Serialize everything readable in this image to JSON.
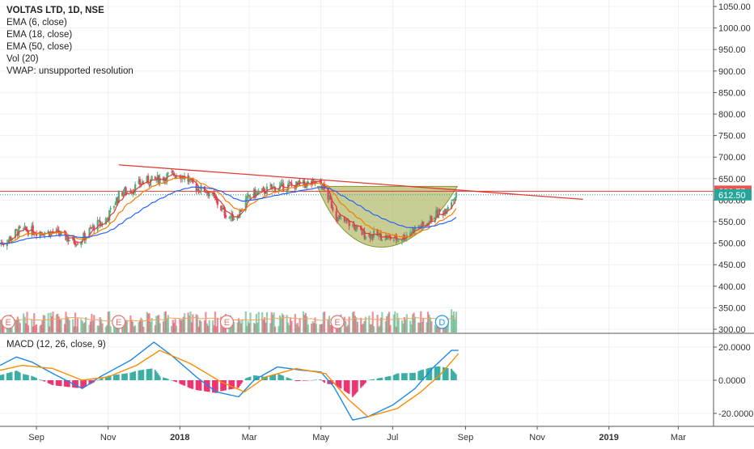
{
  "header": {
    "symbol_line": "VOLTAS LTD, 1D, NSE",
    "indicators": [
      "EMA (6, close)",
      "EMA (18, close)",
      "EMA (50, close)",
      "Vol (20)",
      "VWAP: unsupported resolution"
    ],
    "macd_label": "MACD (12, 26, close, 9)"
  },
  "colors": {
    "up": "#4caf7a",
    "down": "#e0455a",
    "ema6": "#e53935",
    "ema18": "#f57c00",
    "ema50": "#2962ff",
    "macd": "#1e88e5",
    "signal": "#fb8c00",
    "hist_pos": "#26a69a",
    "hist_neg": "#e91e63",
    "cup_fill": "#9aa53a",
    "resistance": "#e53935",
    "price_tag_red": "#ef5350",
    "price_tag_green": "#26a69a"
  },
  "chart_data": [
    {
      "type": "candlestick",
      "title": "VOLTAS LTD, 1D, NSE",
      "y_ticks": [
        "1050.00",
        "1000.00",
        "950.00",
        "900.00",
        "850.00",
        "800.00",
        "750.00",
        "700.00",
        "650.00",
        "600.00",
        "550.00",
        "500.00",
        "450.00",
        "400.00",
        "350.00",
        "300.00"
      ],
      "ylim": [
        300,
        1050
      ],
      "x_ticks": [
        "Sep",
        "Nov",
        "2018",
        "Mar",
        "May",
        "Jul",
        "Sep",
        "Nov",
        "2019",
        "Mar"
      ],
      "x_range": [
        "2017-08-01",
        "2019-03-31"
      ],
      "price_tags": [
        {
          "label": "620.75",
          "value": 620.75,
          "color": "red"
        },
        {
          "label": "612.50",
          "value": 612.5,
          "color": "green"
        }
      ],
      "anchors": [
        {
          "date": "2017-08-01",
          "close": 500
        },
        {
          "date": "2017-08-20",
          "close": 530
        },
        {
          "date": "2017-09-15",
          "close": 525
        },
        {
          "date": "2017-10-05",
          "close": 505
        },
        {
          "date": "2017-10-25",
          "close": 545
        },
        {
          "date": "2017-11-15",
          "close": 620
        },
        {
          "date": "2017-12-05",
          "close": 645
        },
        {
          "date": "2017-12-30",
          "close": 660
        },
        {
          "date": "2018-01-20",
          "close": 625
        },
        {
          "date": "2018-02-15",
          "close": 560
        },
        {
          "date": "2018-03-05",
          "close": 615
        },
        {
          "date": "2018-03-25",
          "close": 630
        },
        {
          "date": "2018-04-10",
          "close": 635
        },
        {
          "date": "2018-04-28",
          "close": 640
        },
        {
          "date": "2018-05-20",
          "close": 550
        },
        {
          "date": "2018-06-10",
          "close": 520
        },
        {
          "date": "2018-07-05",
          "close": 510
        },
        {
          "date": "2018-07-25",
          "close": 540
        },
        {
          "date": "2018-08-10",
          "close": 570
        },
        {
          "date": "2018-08-25",
          "close": 612
        }
      ],
      "overlays": [
        {
          "name": "EMA (6, close)",
          "color": "#e53935"
        },
        {
          "name": "EMA (18, close)",
          "color": "#f57c00"
        },
        {
          "name": "EMA (50, close)",
          "color": "#2962ff"
        }
      ],
      "trendline": {
        "start": {
          "date": "2017-11-10",
          "close": 682
        },
        "end": {
          "date": "2018-12-10",
          "close": 602
        }
      },
      "horizontal_line": 620.75,
      "cup": {
        "start": "2018-04-28",
        "end": "2018-08-25",
        "rim": 632,
        "bottom": 500
      },
      "volume": {
        "name": "Vol (20)",
        "spikes": [
          {
            "date": "2018-05-13",
            "vol": 40
          },
          {
            "date": "2018-08-20",
            "vol": 12
          }
        ]
      },
      "events": [
        {
          "date": "2017-08-08",
          "label": "E"
        },
        {
          "date": "2017-11-10",
          "label": "E"
        },
        {
          "date": "2018-02-10",
          "label": "E"
        },
        {
          "date": "2018-05-15",
          "label": "E"
        },
        {
          "date": "2018-08-12",
          "label": "D"
        }
      ]
    },
    {
      "type": "line",
      "title": "MACD (12, 26, close, 9)",
      "y_ticks": [
        "20.0000",
        "0.0000",
        "-20.0000"
      ],
      "ylim": [
        -26,
        26
      ],
      "series": [
        {
          "name": "MACD",
          "points": [
            [
              "2017-08-01",
              9
            ],
            [
              "2017-08-15",
              14
            ],
            [
              "2017-08-28",
              11
            ],
            [
              "2017-09-15",
              4
            ],
            [
              "2017-10-10",
              -5
            ],
            [
              "2017-10-25",
              2
            ],
            [
              "2017-11-20",
              12
            ],
            [
              "2017-12-10",
              23
            ],
            [
              "2017-12-25",
              15
            ],
            [
              "2018-01-15",
              2
            ],
            [
              "2018-02-01",
              -7
            ],
            [
              "2018-02-20",
              -10
            ],
            [
              "2018-03-05",
              0
            ],
            [
              "2018-03-25",
              8
            ],
            [
              "2018-04-15",
              6
            ],
            [
              "2018-05-01",
              5
            ],
            [
              "2018-05-12",
              -4
            ],
            [
              "2018-05-28",
              -24
            ],
            [
              "2018-06-10",
              -22
            ],
            [
              "2018-07-01",
              -15
            ],
            [
              "2018-07-20",
              -5
            ],
            [
              "2018-08-05",
              8
            ],
            [
              "2018-08-20",
              18
            ],
            [
              "2018-08-26",
              18
            ]
          ]
        },
        {
          "name": "Signal",
          "points": [
            [
              "2017-08-01",
              6
            ],
            [
              "2017-08-20",
              9
            ],
            [
              "2017-09-15",
              7
            ],
            [
              "2017-10-10",
              0
            ],
            [
              "2017-11-01",
              2
            ],
            [
              "2017-11-25",
              9
            ],
            [
              "2017-12-15",
              18
            ],
            [
              "2018-01-10",
              10
            ],
            [
              "2018-02-05",
              -1
            ],
            [
              "2018-02-25",
              -7
            ],
            [
              "2018-03-15",
              2
            ],
            [
              "2018-04-10",
              7
            ],
            [
              "2018-05-05",
              4
            ],
            [
              "2018-05-25",
              -12
            ],
            [
              "2018-06-10",
              -22
            ],
            [
              "2018-07-05",
              -17
            ],
            [
              "2018-07-25",
              -7
            ],
            [
              "2018-08-10",
              3
            ],
            [
              "2018-08-26",
              16
            ]
          ]
        }
      ]
    }
  ]
}
